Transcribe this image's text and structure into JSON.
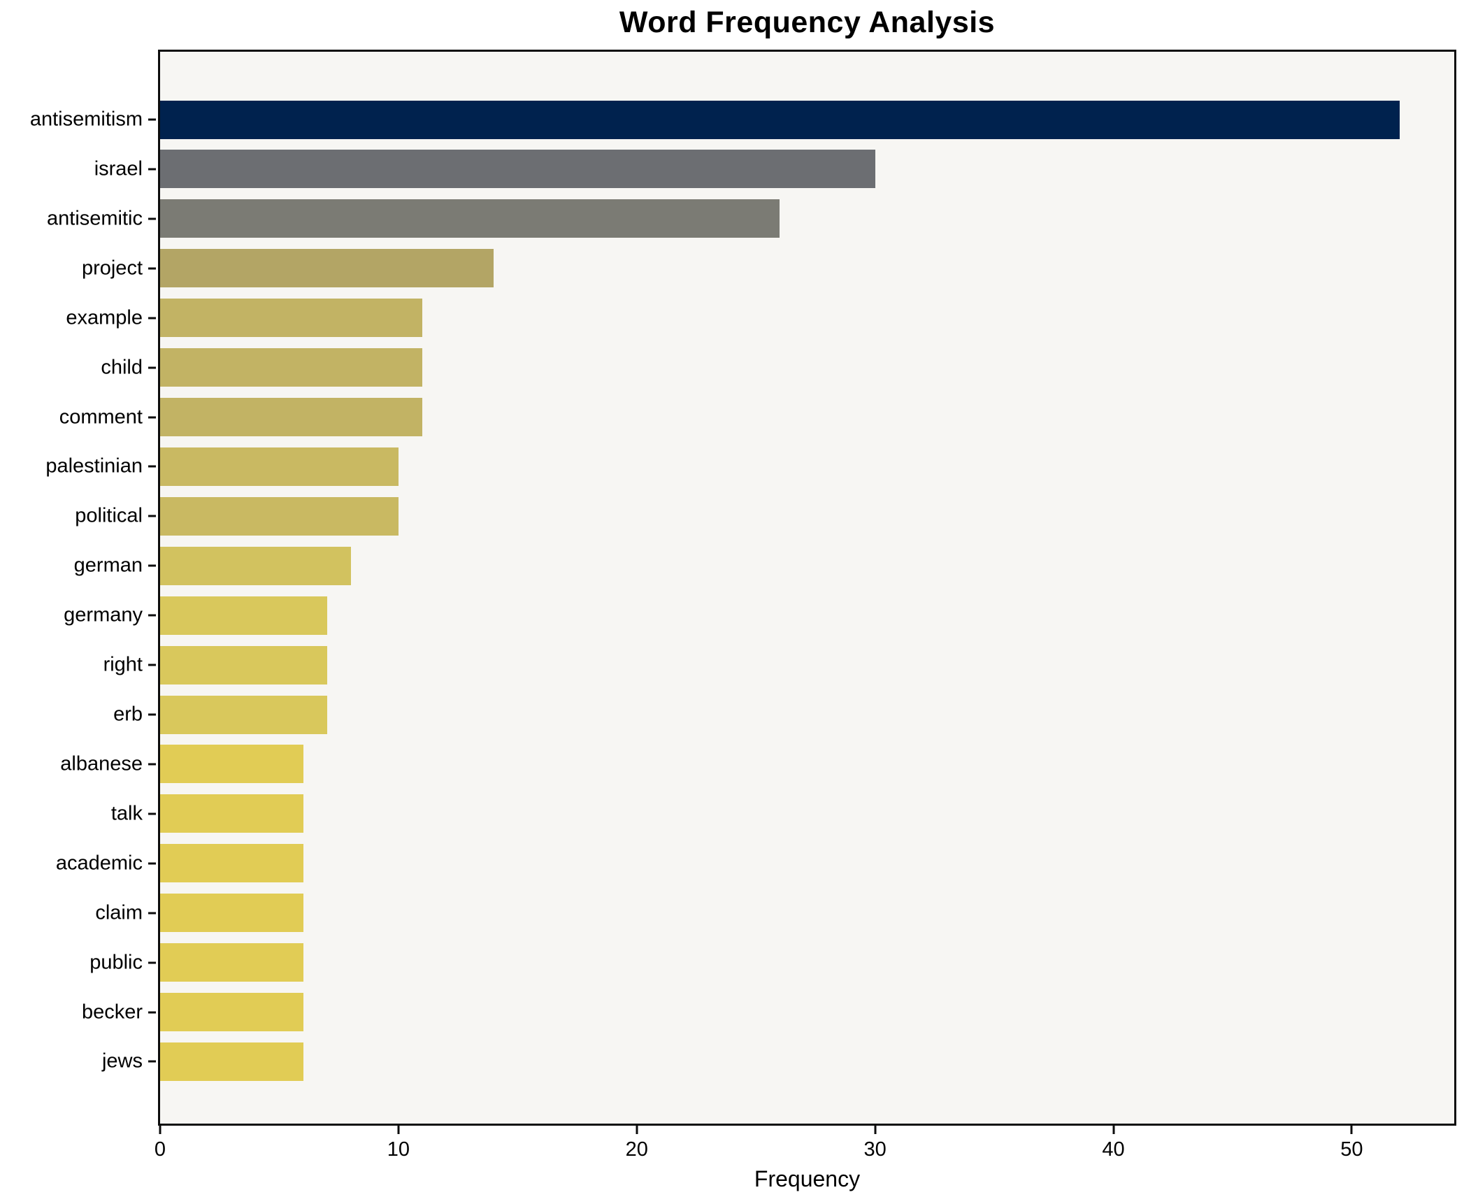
{
  "chart_data": {
    "type": "bar",
    "orientation": "horizontal",
    "title": "Word Frequency Analysis",
    "xlabel": "Frequency",
    "ylabel": "",
    "grid": false,
    "legend": "none",
    "xlim": [
      0,
      54.3
    ],
    "xticks": [
      0,
      10,
      20,
      30,
      40,
      50
    ],
    "categories": [
      "antisemitism",
      "israel",
      "antisemitic",
      "project",
      "example",
      "child",
      "comment",
      "palestinian",
      "political",
      "german",
      "germany",
      "right",
      "erb",
      "albanese",
      "talk",
      "academic",
      "claim",
      "public",
      "becker",
      "jews"
    ],
    "values": [
      52,
      30,
      26,
      14,
      11,
      11,
      11,
      10,
      10,
      8,
      7,
      7,
      7,
      6,
      6,
      6,
      6,
      6,
      6,
      6
    ],
    "bar_colors": [
      "#00224e",
      "#6c6e72",
      "#7b7b74",
      "#b3a565",
      "#c2b364",
      "#c2b364",
      "#c2b364",
      "#c9b962",
      "#c9b962",
      "#d2c25f",
      "#d9c85c",
      "#d9c85c",
      "#d9c85c",
      "#e1cc55",
      "#e1cc55",
      "#e1cc55",
      "#e1cc55",
      "#e1cc55",
      "#e1cc55",
      "#e1cc55"
    ],
    "colormap": "cividis reversed by value",
    "plot_background": "#f7f6f3",
    "figure_background": "#ffffff",
    "spine_color": "#0d0d0d"
  }
}
